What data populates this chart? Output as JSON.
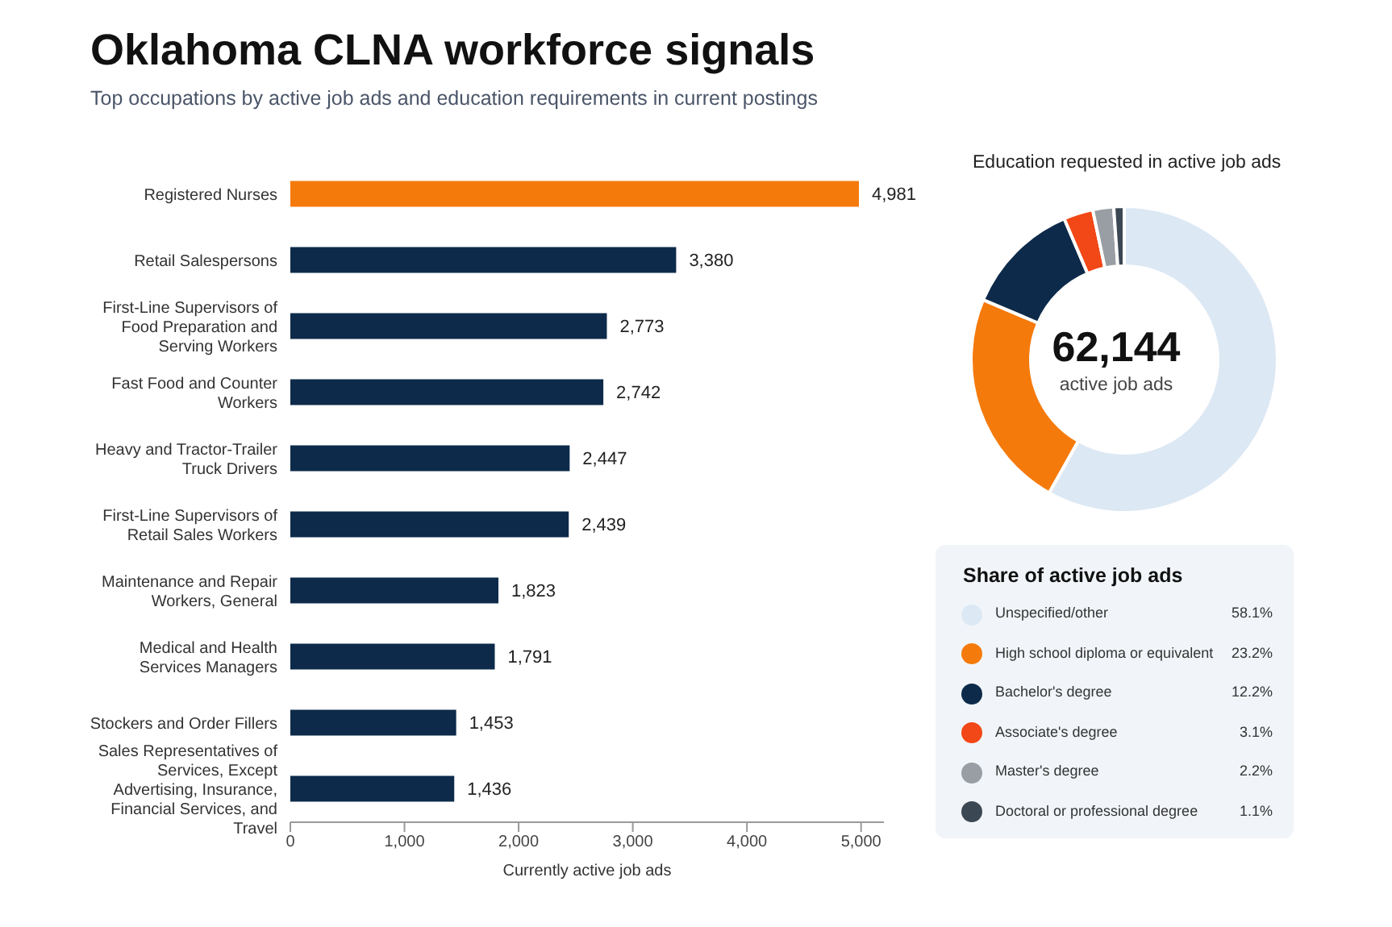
{
  "chart_data": [
    {
      "type": "bar",
      "orientation": "horizontal",
      "title": "Oklahoma CLNA workforce signals",
      "subtitle": "Top occupations by active job ads and education requirements in current postings",
      "xlabel": "Currently active job ads",
      "categories": [
        "Registered Nurses",
        "Retail Salespersons",
        "First-Line Supervisors of Food Preparation and Serving Workers",
        "Fast Food and Counter Workers",
        "Heavy and Tractor-Trailer Truck Drivers",
        "First-Line Supervisors of Retail Sales Workers",
        "Maintenance and Repair Workers, General",
        "Medical and Health Services Managers",
        "Stockers and Order Fillers",
        "Sales Representatives of Services, Except Advertising, Insurance, Financial Services, and Travel"
      ],
      "values": [
        4981,
        3380,
        2773,
        2742,
        2447,
        2439,
        1823,
        1791,
        1453,
        1436
      ],
      "colors": [
        "#f57a0c",
        "#0d2a4a",
        "#0d2a4a",
        "#0d2a4a",
        "#0d2a4a",
        "#0d2a4a",
        "#0d2a4a",
        "#0d2a4a",
        "#0d2a4a",
        "#0d2a4a"
      ],
      "value_labels": [
        "4,981",
        "3,380",
        "2,773",
        "2,742",
        "2,447",
        "2,439",
        "1,823",
        "1,791",
        "1,453",
        "1,436"
      ],
      "xlim": [
        0,
        5200
      ],
      "xticks": [
        {
          "value": 0,
          "label": "0"
        },
        {
          "value": 1000,
          "label": "1,000"
        },
        {
          "value": 2000,
          "label": "2,000"
        },
        {
          "value": 3000,
          "label": "3,000"
        },
        {
          "value": 4000,
          "label": "4,000"
        },
        {
          "value": 5000,
          "label": "5,000"
        }
      ],
      "grid": false,
      "legend": false
    },
    {
      "type": "donut",
      "title": "Education requested in active job ads",
      "annotations": [
        "62,144",
        "active job ads"
      ],
      "legend_title": "Share of active job ads",
      "legend": "bottom",
      "categories": [
        "Unspecified/other",
        "High school diploma or equivalent",
        "Bachelor's degree",
        "Associate's degree",
        "Master's degree",
        "Doctoral or professional degree"
      ],
      "values": [
        58.1,
        23.2,
        12.2,
        3.1,
        2.2,
        1.1
      ],
      "value_labels": [
        "58.1%",
        "23.2%",
        "12.2%",
        "3.1%",
        "2.2%",
        "1.1%"
      ],
      "colors": [
        "#dce8f4",
        "#f57a0c",
        "#0d2a4a",
        "#f24716",
        "#999ea4",
        "#3b4753"
      ]
    }
  ]
}
